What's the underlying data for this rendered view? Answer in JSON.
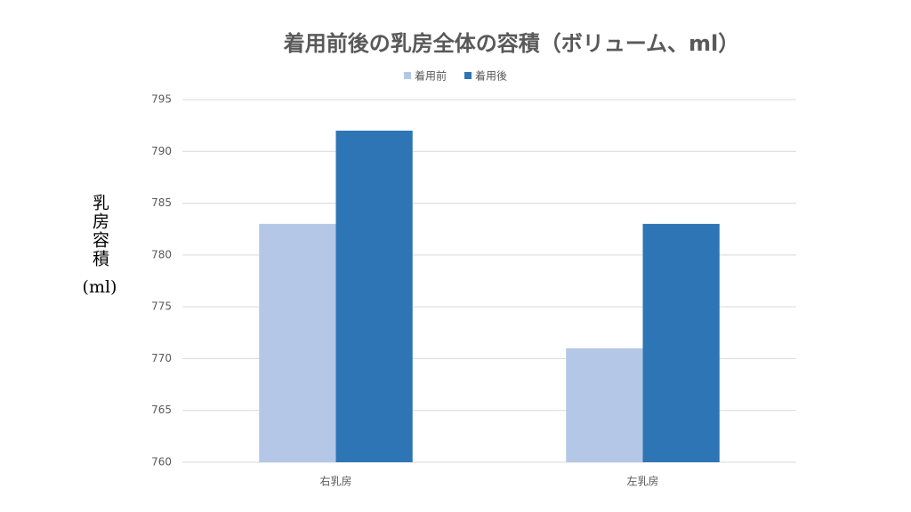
{
  "chart_data": {
    "type": "bar",
    "title": "着用前後の乳房全体の容積（ボリューム、ml）",
    "y_label": "乳房容積",
    "y_unit": "(ml)",
    "categories": [
      "右乳房",
      "左乳房"
    ],
    "series": [
      {
        "name": "着用前",
        "color": "#b4c7e7",
        "values": [
          783,
          771
        ]
      },
      {
        "name": "着用後",
        "color": "#2e75b6",
        "values": [
          792,
          783
        ]
      }
    ],
    "ylim": [
      760,
      795
    ],
    "yticks": [
      760,
      765,
      770,
      775,
      780,
      785,
      790,
      795
    ],
    "grid": true,
    "legend": "top"
  }
}
